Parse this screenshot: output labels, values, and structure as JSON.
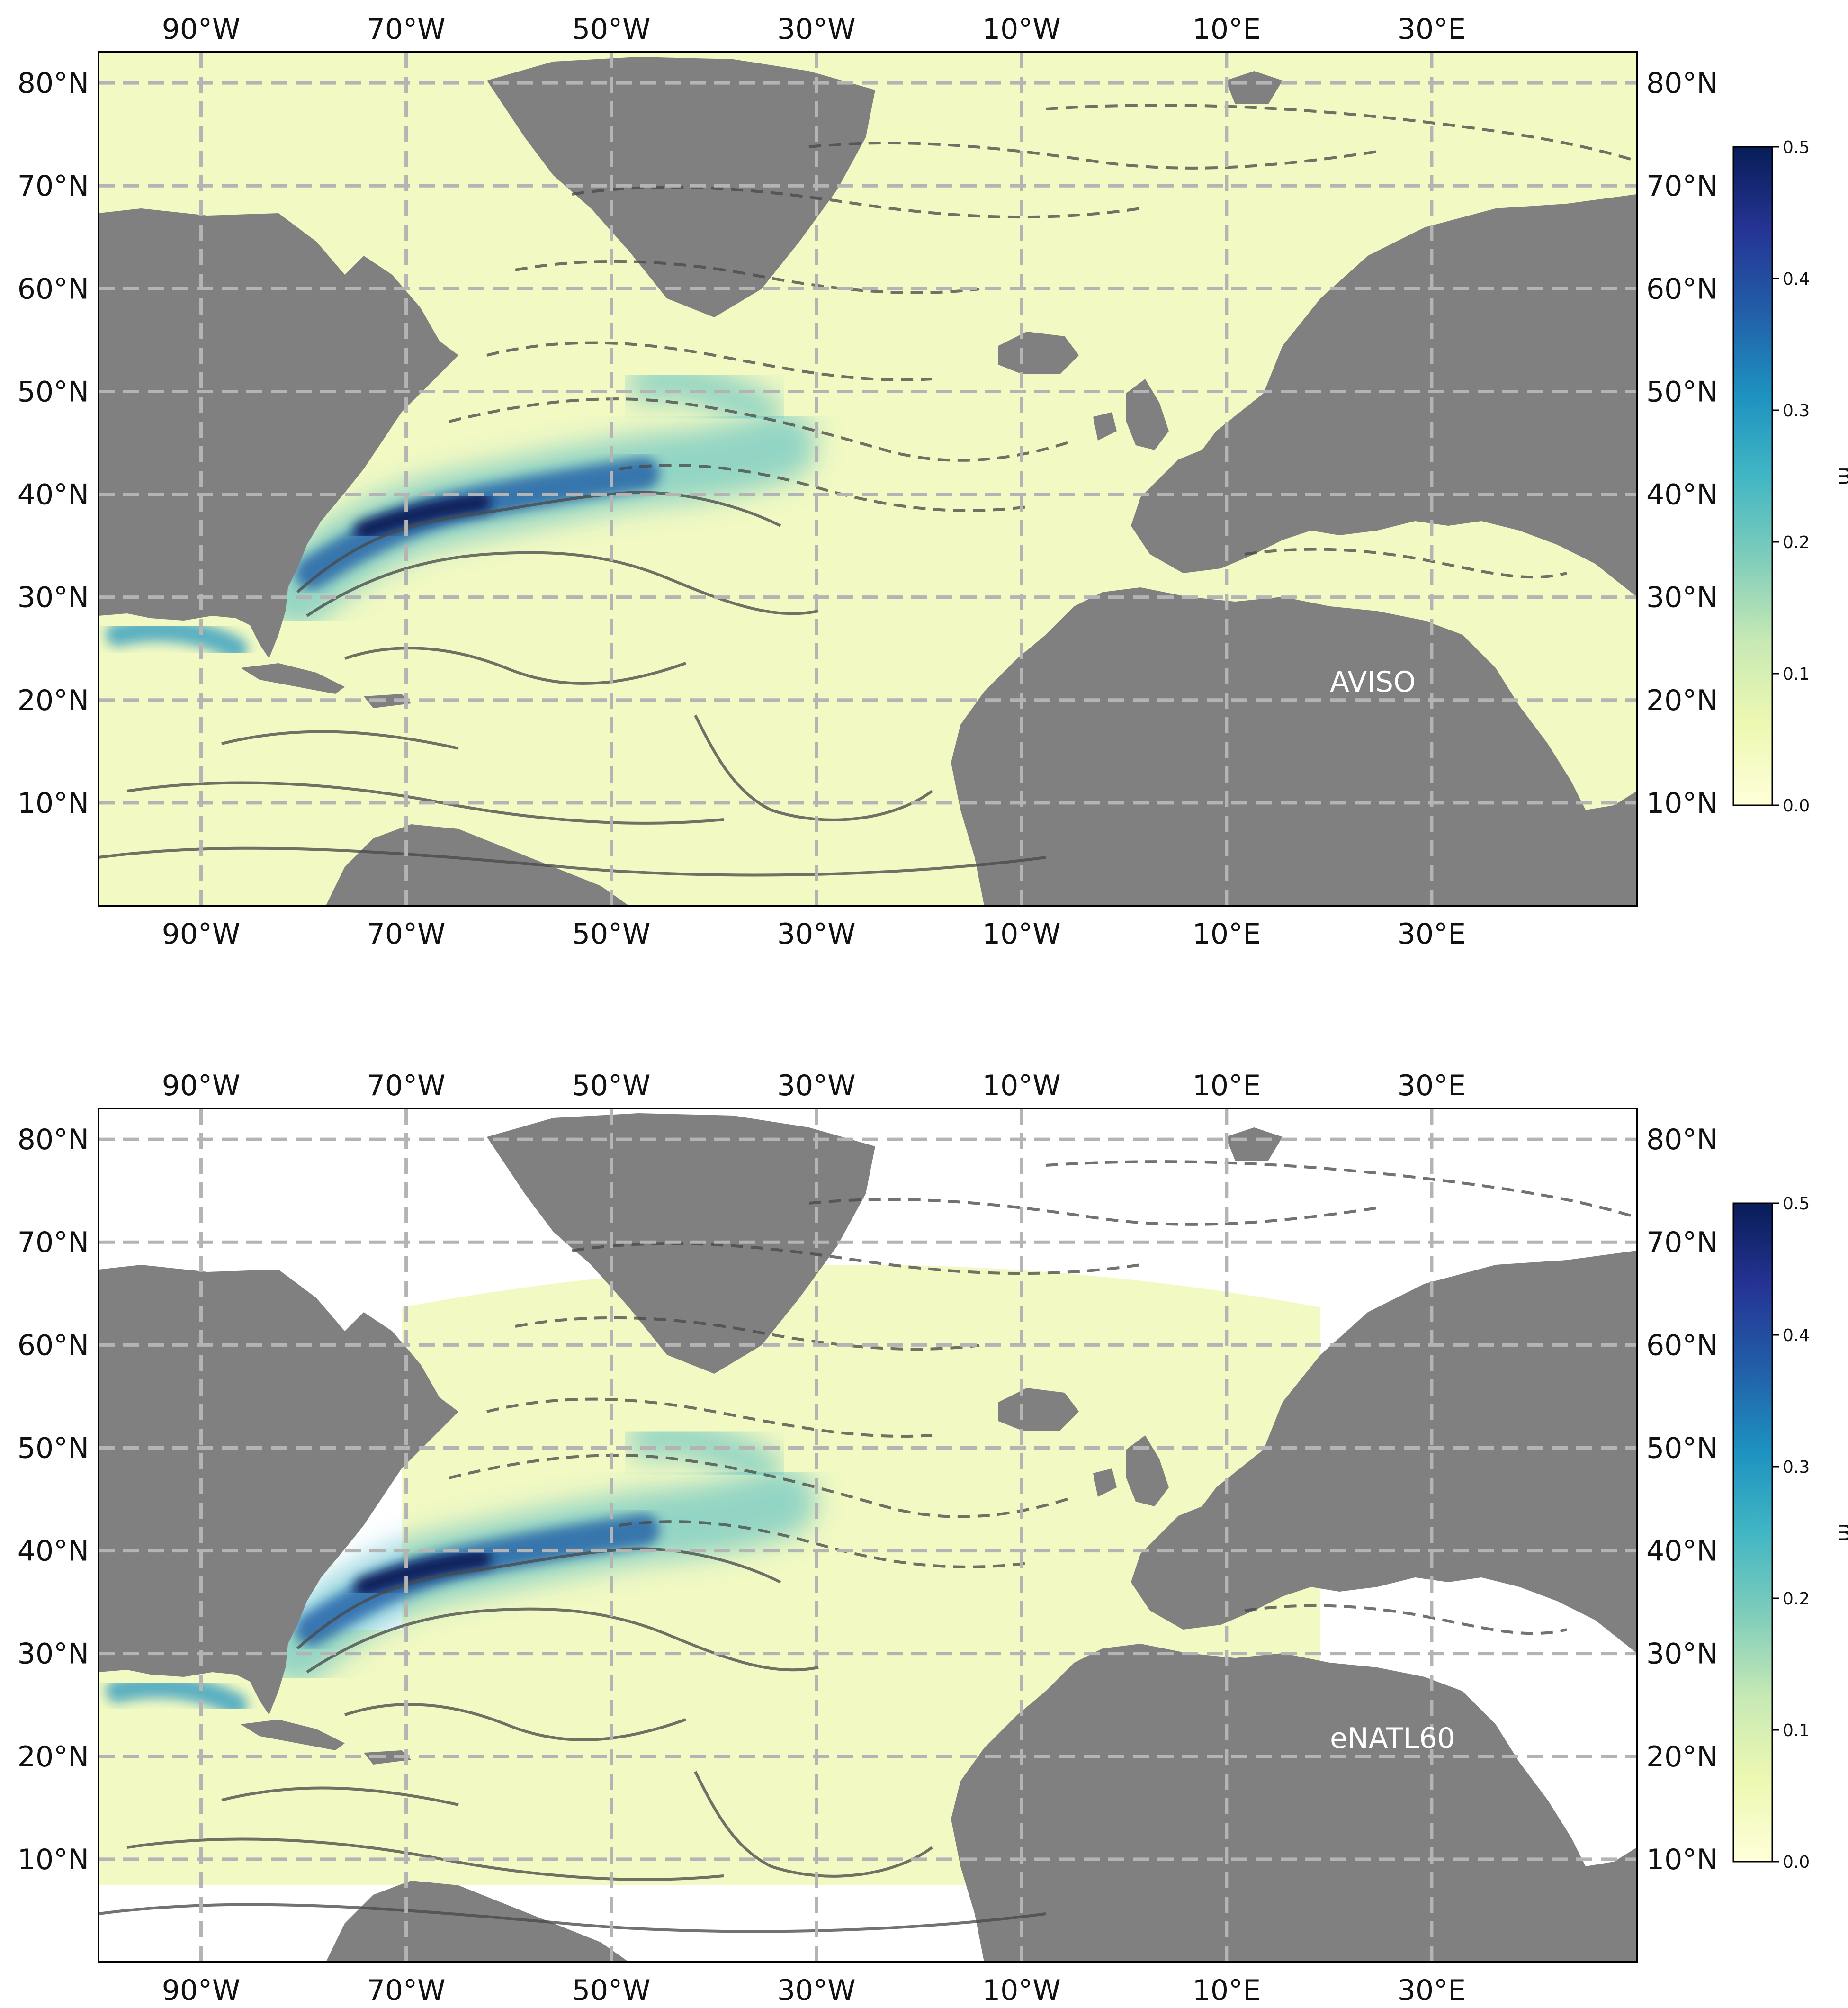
{
  "figure": {
    "lon_range": [
      -100,
      50
    ],
    "lat_range": [
      0,
      83
    ],
    "lon_ticks": [
      "90°W",
      "70°W",
      "50°W",
      "30°W",
      "10°W",
      "10°E",
      "30°E"
    ],
    "lat_ticks": [
      "10°N",
      "20°N",
      "30°N",
      "40°N",
      "50°N",
      "60°N",
      "70°N",
      "80°N"
    ]
  },
  "colorbar": {
    "ticks": [
      "0.0",
      "0.1",
      "0.2",
      "0.3",
      "0.4",
      "0.5"
    ],
    "range": [
      0,
      0.5
    ],
    "label": "m",
    "colors": [
      "#ffffd9",
      "#edf8b1",
      "#c7e9b4",
      "#7fcdbb",
      "#41b6c4",
      "#1d91c0",
      "#225ea8",
      "#253494",
      "#081d58"
    ]
  },
  "panels": [
    {
      "label": "AVISO"
    },
    {
      "label": "eNATL60"
    }
  ],
  "colors": {
    "land": "#808080",
    "no_data": "#ffffff",
    "low_value": "#f2f9c3",
    "grid": "#b4b4b4",
    "contour": "#4a4a4a"
  }
}
